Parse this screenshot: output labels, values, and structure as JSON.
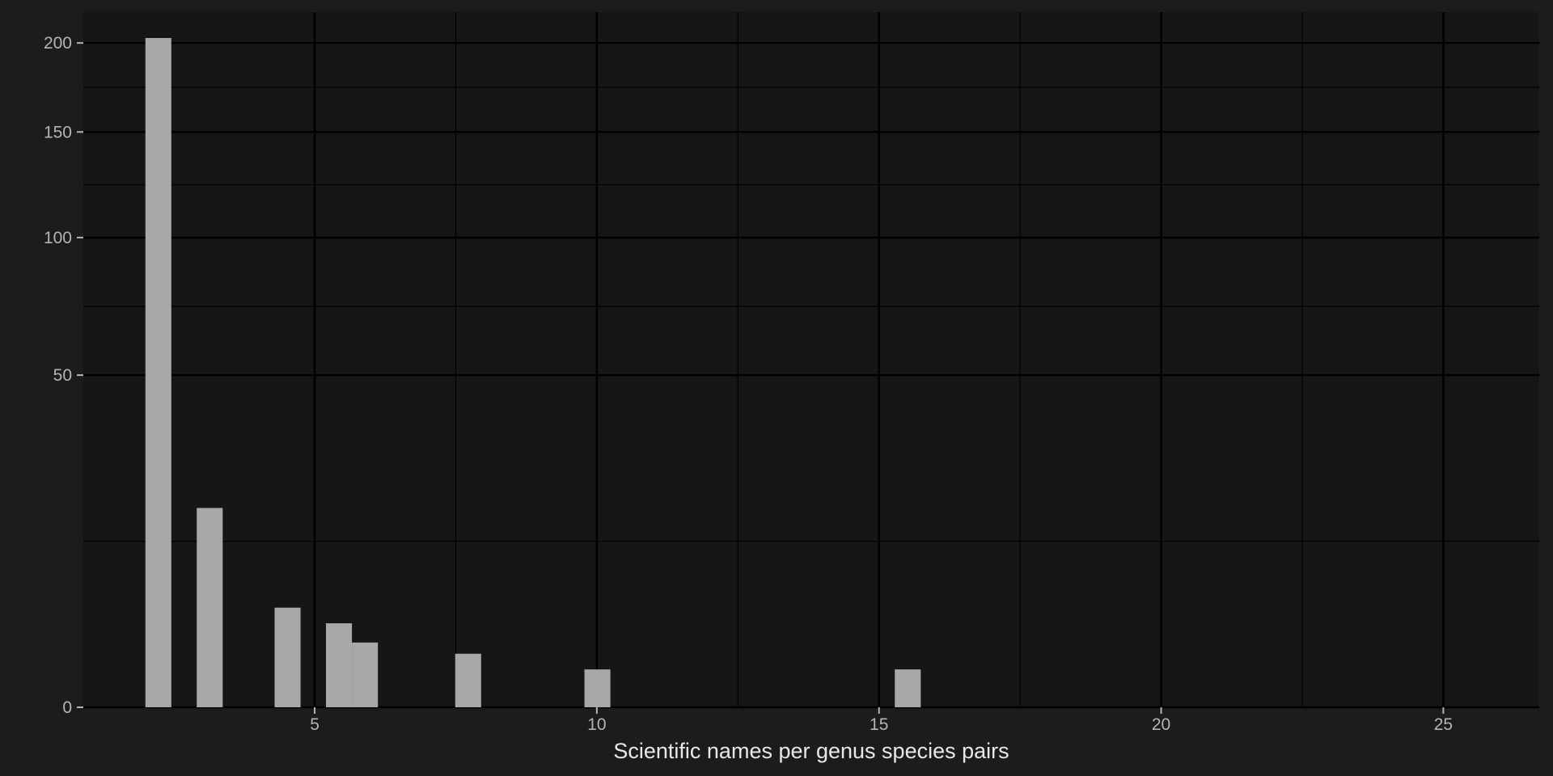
{
  "chart_data": {
    "type": "bar",
    "title": "",
    "xlabel": "Scientific names per genus species pairs",
    "ylabel": "",
    "y_scale": "sqrt",
    "x_ticks": [
      5,
      10,
      15,
      20,
      25
    ],
    "y_ticks": [
      0,
      50,
      100,
      150,
      200
    ],
    "xlim": [
      0.9,
      26.7
    ],
    "ylim": [
      0,
      219
    ],
    "grid": true,
    "colors": {
      "background": "#1c1c1c",
      "panel": "#161616",
      "grid": "#000000",
      "bar": "#a8a8a8",
      "tick_text": "#b4b4b4",
      "title_text": "#e8e8e8"
    },
    "bars": [
      {
        "x0": 2.0,
        "x1": 2.46,
        "value": 203
      },
      {
        "x0": 2.91,
        "x1": 3.37,
        "value": 18
      },
      {
        "x0": 4.29,
        "x1": 4.75,
        "value": 4.5
      },
      {
        "x0": 5.2,
        "x1": 5.66,
        "value": 3.2
      },
      {
        "x0": 5.66,
        "x1": 6.12,
        "value": 1.9
      },
      {
        "x0": 7.49,
        "x1": 7.95,
        "value": 1.3
      },
      {
        "x0": 9.78,
        "x1": 10.24,
        "value": 0.65
      },
      {
        "x0": 15.28,
        "x1": 15.74,
        "value": 0.65
      }
    ]
  }
}
